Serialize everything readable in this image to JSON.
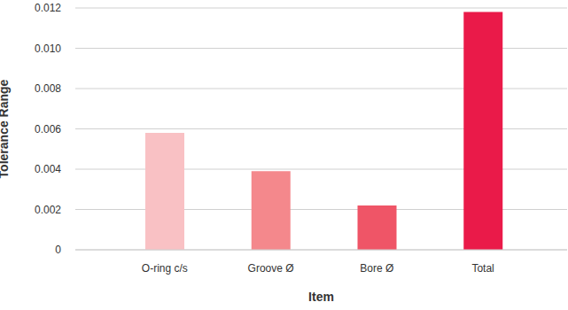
{
  "chart_data": {
    "type": "bar",
    "x_label": "Item",
    "y_label": "Tolerance Range",
    "categories": [
      "O-ring c/s",
      "Groove Ø",
      "Bore Ø",
      "Total"
    ],
    "values": [
      0.0058,
      0.0039,
      0.0022,
      0.0118
    ],
    "colors": [
      "#f9c1c4",
      "#f4888c",
      "#ef5567",
      "#ea1a49"
    ],
    "ylim": [
      0,
      0.012
    ],
    "yticks": [
      0,
      0.002,
      0.004,
      0.006,
      0.008,
      {
        "value": 0.01,
        "label": "0.010"
      },
      0.012
    ],
    "grid": true
  }
}
